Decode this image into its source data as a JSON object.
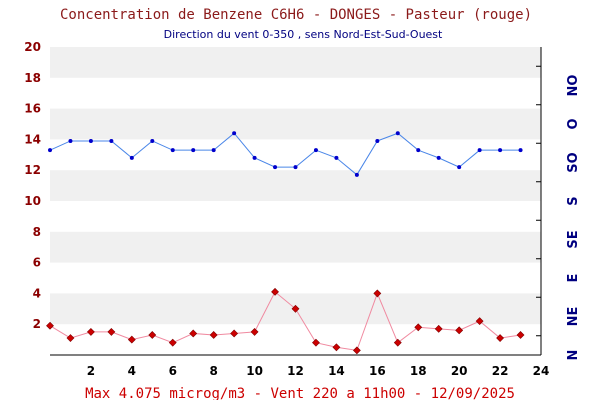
{
  "title": "Concentration de Benzene C6H6  -   DONGES - Pasteur (rouge)",
  "subtitle": "Direction du vent 0-350 , sens Nord-Est-Sud-Ouest",
  "footer": "Max 4.075 microg/m3 - Vent 220  a 11h00 - 12/09/2025",
  "colors": {
    "wind_line": "#4a86e8",
    "wind_marker": "#0000cc",
    "conc_line": "#f08aa0",
    "conc_marker": "#cc0000",
    "band": "#f0f0f0",
    "axis": "#000000",
    "y_labels": "#8b0000",
    "dir_labels": "#000080"
  },
  "chart_data": {
    "type": "line",
    "x": [
      0,
      1,
      2,
      3,
      4,
      5,
      6,
      7,
      8,
      9,
      10,
      11,
      12,
      13,
      14,
      15,
      16,
      17,
      18,
      19,
      20,
      21,
      22,
      23
    ],
    "xlim": [
      0,
      24
    ],
    "x_ticks": [
      "2",
      "4",
      "6",
      "8",
      "10",
      "12",
      "14",
      "16",
      "18",
      "20",
      "22",
      "24"
    ],
    "ylim": [
      0,
      20
    ],
    "y_ticks": [
      "2",
      "4",
      "6",
      "8",
      "10",
      "12",
      "14",
      "16",
      "18",
      "20"
    ],
    "direction_ticks": [
      "N",
      "NE",
      "E",
      "SE",
      "S",
      "SO",
      "O",
      "NO"
    ],
    "series": [
      {
        "values": [
          1.9,
          1.1,
          1.5,
          1.5,
          1.0,
          1.3,
          0.8,
          1.4,
          1.3,
          1.4,
          1.5,
          4.1,
          3.0,
          0.8,
          0.5,
          0.3,
          4.0,
          0.8,
          1.8,
          1.7,
          1.6,
          2.2,
          1.1,
          1.3
        ]
      },
      {
        "values": [
          13.3,
          13.9,
          13.9,
          13.9,
          12.8,
          13.9,
          13.3,
          13.3,
          13.3,
          14.4,
          12.8,
          12.2,
          12.2,
          13.3,
          12.8,
          11.7,
          13.9,
          14.4,
          13.3,
          12.8,
          12.2,
          13.3,
          13.3,
          13.3
        ]
      }
    ]
  }
}
